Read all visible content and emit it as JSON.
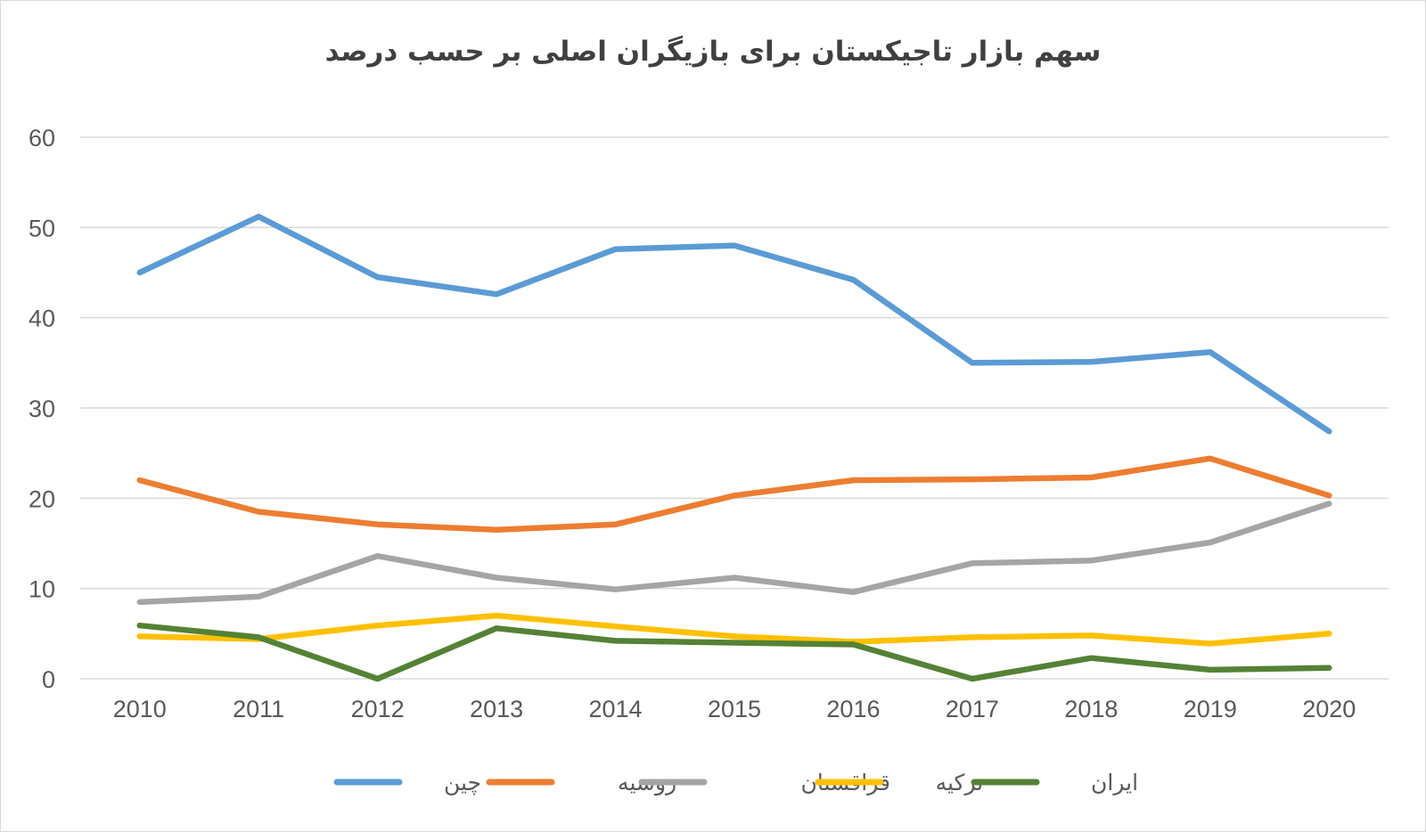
{
  "chart_data": {
    "type": "line",
    "title": "سهم بازار تاجیکستان برای بازیگران اصلی بر حسب درصد",
    "xlabel": "",
    "ylabel": "",
    "categories": [
      "2010",
      "2011",
      "2012",
      "2013",
      "2014",
      "2015",
      "2016",
      "2017",
      "2018",
      "2019",
      "2020"
    ],
    "ylim": [
      0,
      60
    ],
    "yticks": [
      "0",
      "10",
      "20",
      "30",
      "40",
      "50",
      "60"
    ],
    "grid": true,
    "legend_position": "bottom",
    "series": [
      {
        "name": "چین",
        "color": "#5B9BD5",
        "values": [
          45,
          51.2,
          44.5,
          42.6,
          47.6,
          48,
          44.2,
          35,
          35.1,
          36.2,
          27.4
        ]
      },
      {
        "name": "روسیه",
        "color": "#ED7D31",
        "values": [
          22,
          18.5,
          17.1,
          16.5,
          17.1,
          20.3,
          22,
          22.1,
          22.3,
          24.4,
          20.3
        ]
      },
      {
        "name": "قزاقستان",
        "color": "#A5A5A5",
        "values": [
          8.5,
          9.1,
          13.6,
          11.2,
          9.9,
          11.2,
          9.6,
          12.8,
          13.1,
          15.1,
          19.4
        ]
      },
      {
        "name": "ترکیه",
        "color": "#FFC000",
        "values": [
          4.7,
          4.4,
          5.9,
          7,
          5.8,
          4.7,
          4.1,
          4.6,
          4.8,
          3.9,
          5
        ]
      },
      {
        "name": "ایران",
        "color": "#548235",
        "values": [
          5.9,
          4.6,
          0,
          5.6,
          4.2,
          4,
          3.8,
          0,
          2.3,
          1,
          1.2
        ]
      }
    ]
  }
}
